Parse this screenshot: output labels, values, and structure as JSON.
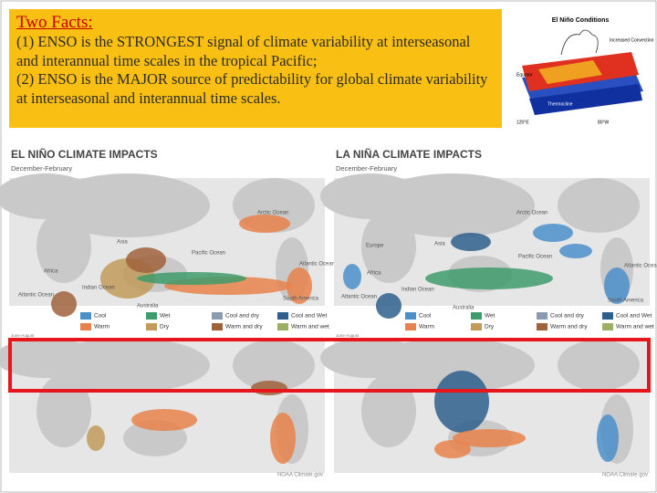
{
  "header": {
    "title": "Two Facts:",
    "paragraphs": [
      "(1) ENSO is the STRONGEST  signal of climate variability at interseasonal and interannual time scales in the tropical Pacific;",
      "(2) ENSO is the MAJOR source of predictability for global climate variability at interseasonal and interannual time scales."
    ]
  },
  "diagram": {
    "title": "El Niño Conditions",
    "labels": [
      "Increased Convection",
      "Equator",
      "Thermocline",
      "120°E",
      "80°W"
    ]
  },
  "maps": [
    {
      "title": "EL NIÑO CLIMATE IMPACTS",
      "season": "December-February",
      "regions": [
        "Arctic Ocean",
        "Asia",
        "Pacific Ocean",
        "Atlantic Ocean",
        "Africa",
        "Indian Ocean",
        "Atlantic Ocean",
        "Australia",
        "South America"
      ],
      "legend": [
        "Cool",
        "Wet",
        "Cool and dry",
        "Cool and Wet",
        "Warm",
        "Dry",
        "Warm and dry",
        "Warm and wet"
      ],
      "season2": "June-August",
      "credit": "NOAA Climate.gov"
    },
    {
      "title": "LA NIÑA CLIMATE IMPACTS",
      "season": "December-February",
      "regions": [
        "Arctic Ocean",
        "Europe",
        "Asia",
        "Pacific Ocean",
        "Atlantic Ocean",
        "Africa",
        "Indian Ocean",
        "Atlantic Ocean",
        "Australia",
        "South America"
      ],
      "legend": [
        "Cool",
        "Wet",
        "Cool and dry",
        "Cool and Wet",
        "Warm",
        "Dry",
        "Warm and dry",
        "Warm and wet"
      ],
      "season2": "June-August",
      "credit": "NOAA Climate.gov"
    }
  ]
}
